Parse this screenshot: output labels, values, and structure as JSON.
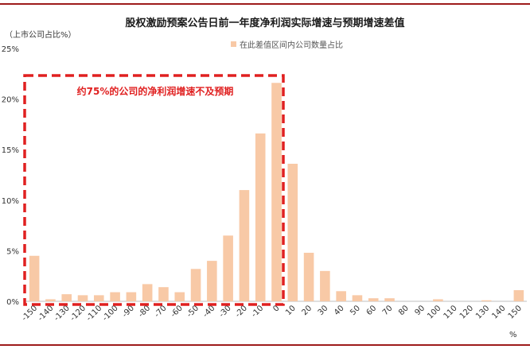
{
  "chart_data": {
    "type": "bar",
    "title": "股权激励预案公告日前一年度净利润实际增速与预期增速差值",
    "ylabel": "（上市公司占比%）",
    "xunit": "%",
    "legend": "在此差值区间内公司数量占比",
    "annotation": "约75%的公司的净利润增速不及预期",
    "bar_color": "#f8c9a6",
    "annotation_color": "#e02020",
    "ylim": [
      0,
      25
    ],
    "yticks": [
      "0%",
      "5%",
      "10%",
      "15%",
      "20%",
      "25%"
    ],
    "categories": [
      "-150",
      "-140",
      "-130",
      "-120",
      "-110",
      "-100",
      "-90",
      "-80",
      "-70",
      "-60",
      "-50",
      "-40",
      "-30",
      "-20",
      "-10",
      "0",
      "10",
      "20",
      "30",
      "40",
      "50",
      "60",
      "70",
      "80",
      "90",
      "100",
      "110",
      "120",
      "130",
      "140",
      "150"
    ],
    "values": [
      4.5,
      0.2,
      0.7,
      0.6,
      0.6,
      0.9,
      0.9,
      1.7,
      1.4,
      0.9,
      3.2,
      4.0,
      6.5,
      11.0,
      16.6,
      21.6,
      13.6,
      4.8,
      3.0,
      1.0,
      0.6,
      0.3,
      0.3,
      0,
      0,
      0.2,
      0,
      0,
      0.1,
      0,
      1.1
    ]
  }
}
